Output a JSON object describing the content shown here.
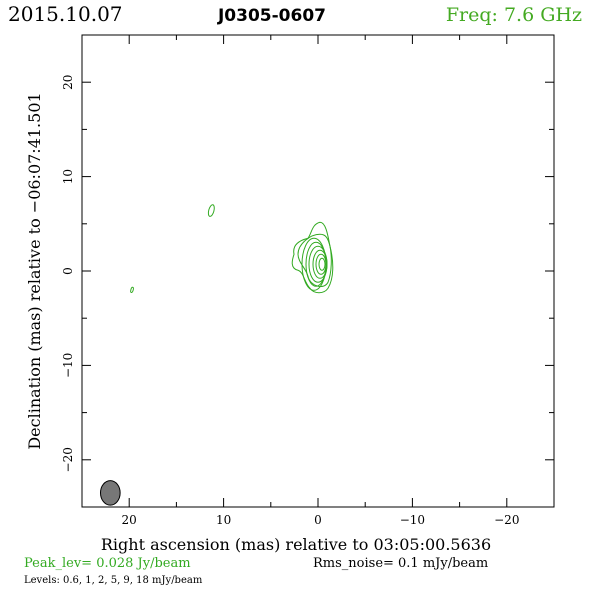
{
  "header": {
    "date": "2015.10.07",
    "source": "J0305-0607",
    "freq": "Freq: 7.6 GHz"
  },
  "footer": {
    "peak": "Peak_lev=  0.028 Jy/beam",
    "rms": "Rms_noise=  0.1 mJy/beam",
    "levels": "Levels: 0.6,   1,   2,   5,   9,   18 mJy/beam"
  },
  "colors": {
    "contour": "#33aa22",
    "header_green": "#44aa22",
    "beam_fill": "#777777"
  },
  "chart_data": {
    "type": "contour",
    "xlabel": "Right ascension (mas) relative to 03:05:00.5636",
    "ylabel": "Declination (mas) relative to −06:07:41.501",
    "xlim": [
      25,
      -25
    ],
    "ylim": [
      -25,
      25
    ],
    "x_ticks": [
      20,
      10,
      0,
      -10,
      -20
    ],
    "x_tick_labels": [
      "20",
      "10",
      "0",
      "−10",
      "−20"
    ],
    "y_ticks": [
      20,
      10,
      0,
      -10,
      -20
    ],
    "y_tick_labels": [
      "20",
      "10",
      "0",
      "−10",
      "−20"
    ],
    "levels_mJy": [
      0.6,
      1,
      2,
      5,
      9,
      18
    ],
    "peak_Jy_per_beam": 0.028,
    "rms_mJy_per_beam": 0.1,
    "core": {
      "x": 0,
      "y": 0.5
    },
    "components": [
      {
        "x": 11.3,
        "y": 6.4
      },
      {
        "x": 19.7,
        "y": -2.0
      }
    ],
    "beam": {
      "x": 22.0,
      "y": -23.5,
      "major_mas": 2.6,
      "minor_mas": 1.3,
      "pa_deg": 0
    }
  }
}
